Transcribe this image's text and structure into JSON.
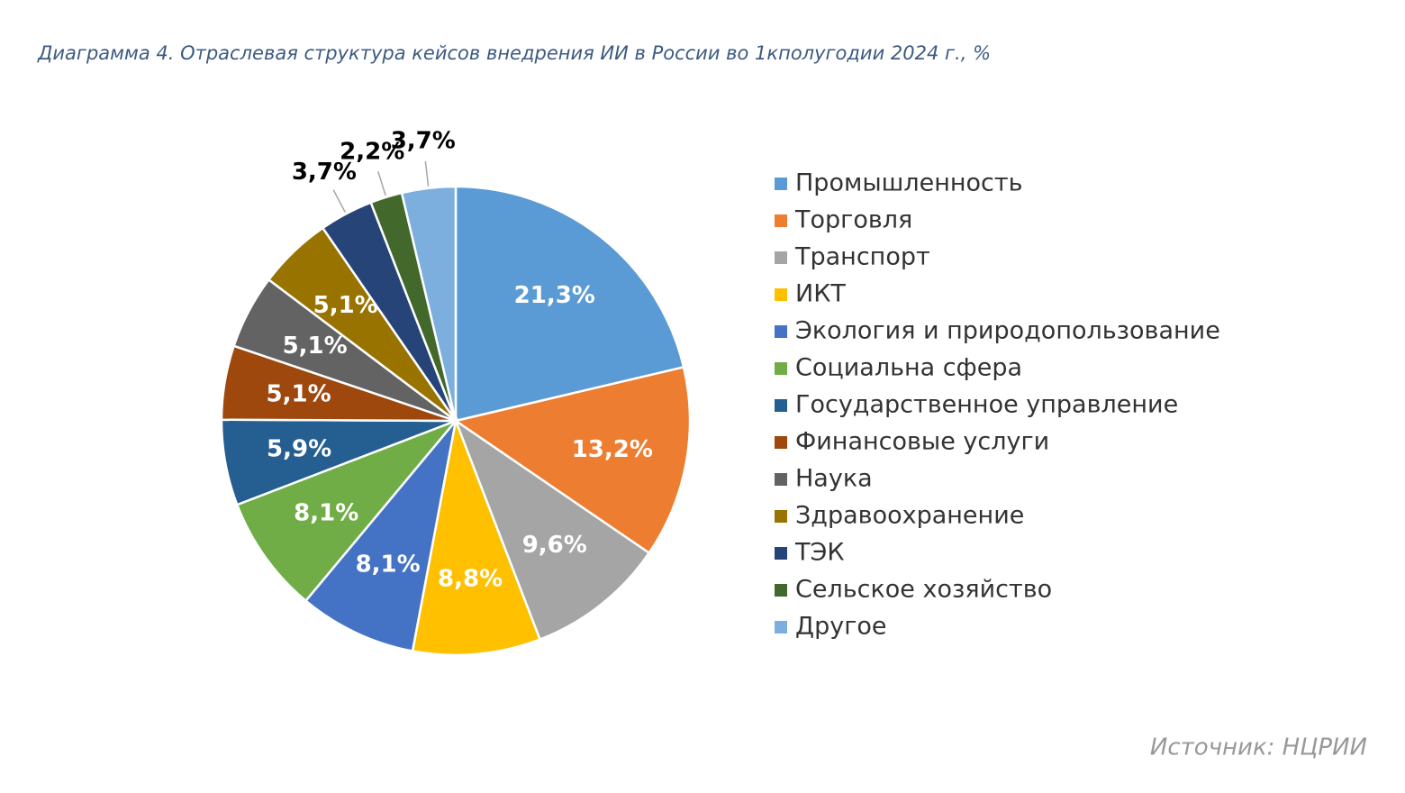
{
  "chart_data": {
    "type": "pie",
    "title": "Диаграмма 4. Отраслевая структура кейсов внедрения ИИ в России во 1кполугодии 2024 г., %",
    "source": "Источник: НЦРИИ",
    "categories": [
      "Промышленность",
      "Торговля",
      "Транспорт",
      "ИКТ",
      "Экология и природопользование",
      "Социальна сфера",
      "Государственное управление",
      "Финансовые услуги",
      "Наука",
      "Здравоохранение",
      "ТЭК",
      "Сельское хозяйство",
      "Другое"
    ],
    "values": [
      21.3,
      13.2,
      9.6,
      8.8,
      8.1,
      8.1,
      5.9,
      5.1,
      5.1,
      5.1,
      3.7,
      2.2,
      3.7
    ],
    "value_labels": [
      "21,3%",
      "13,2%",
      "9,6%",
      "8,8%",
      "8,1%",
      "8,1%",
      "5,9%",
      "5,1%",
      "5,1%",
      "5,1%",
      "3,7%",
      "2,2%",
      "3,7%"
    ],
    "colors": [
      "#5b9bd5",
      "#ed7d31",
      "#a5a5a5",
      "#ffc000",
      "#4472c4",
      "#70ad47",
      "#255e91",
      "#9e480e",
      "#636363",
      "#997300",
      "#264478",
      "#43682b",
      "#7cafdd"
    ],
    "legend": "right"
  }
}
